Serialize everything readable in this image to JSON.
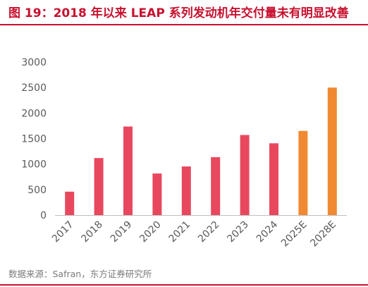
{
  "title": "图 19：2018 年以来 LEAP 系列发动机年交付量未有明显改善",
  "source": "数据来源：Safran，东方证券研究所",
  "colors": {
    "title": "#c8102e",
    "actual": "#e8485e",
    "estimate": "#ef8a32",
    "axis": "#bfbfbf",
    "tick_text": "#595959"
  },
  "chart_data": {
    "type": "bar",
    "title": "",
    "xlabel": "",
    "ylabel": "",
    "categories": [
      "2017",
      "2018",
      "2019",
      "2020",
      "2021",
      "2022",
      "2023",
      "2024",
      "2025E",
      "2028E"
    ],
    "values": [
      459,
      1118,
      1736,
      815,
      953,
      1136,
      1570,
      1407,
      1650,
      2500
    ],
    "estimate_categories": [
      "2025E",
      "2028E"
    ],
    "ylim": [
      0,
      3000
    ],
    "yticks": [
      0,
      500,
      1000,
      1500,
      2000,
      2500,
      3000
    ],
    "grid": false,
    "legend": "none"
  }
}
